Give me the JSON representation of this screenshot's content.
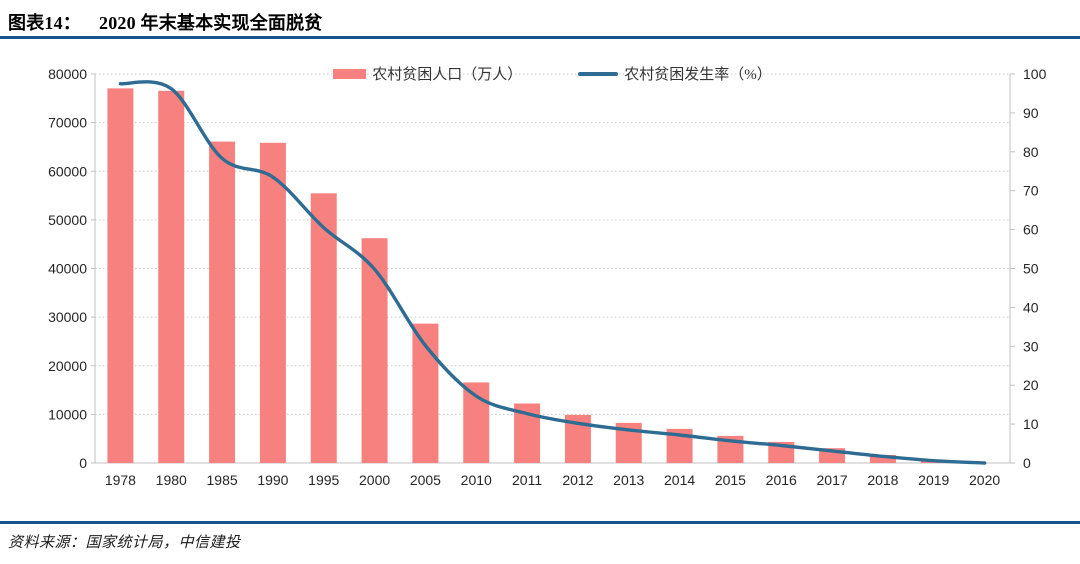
{
  "header": {
    "figure_label": "图表14：",
    "figure_title": "2020 年末基本实现全面脱贫"
  },
  "footer": {
    "source": "资料来源：国家统计局，中信建投"
  },
  "colors": {
    "bar": "#F7817E",
    "line": "#2E6C93",
    "rule": "#17558C",
    "grid": "#CBCBCB",
    "axis": "#C0C0C0",
    "tick_text": "#262626"
  },
  "chart_data": {
    "type": "bar+line",
    "title": "2020 年末基本实现全面脱贫",
    "categories": [
      "1978",
      "1980",
      "1985",
      "1990",
      "1995",
      "2000",
      "2005",
      "2010",
      "2011",
      "2012",
      "2013",
      "2014",
      "2015",
      "2016",
      "2017",
      "2018",
      "2019",
      "2020"
    ],
    "series": [
      {
        "name": "农村贫困人口（万人）",
        "type": "bar",
        "axis": "left",
        "values": [
          77039,
          76542,
          66101,
          65849,
          55463,
          46224,
          28662,
          16567,
          12238,
          9899,
          8249,
          7017,
          5575,
          4335,
          3046,
          1660,
          551,
          0
        ]
      },
      {
        "name": "农村贫困发生率（%）",
        "type": "line",
        "axis": "right",
        "values": [
          97.5,
          96.2,
          78.3,
          73.5,
          60.5,
          49.8,
          30.2,
          17.2,
          12.7,
          10.2,
          8.5,
          7.2,
          5.7,
          4.5,
          3.1,
          1.7,
          0.6,
          0
        ]
      }
    ],
    "left_axis": {
      "min": 0,
      "max": 80000,
      "step": 10000,
      "ticks": [
        0,
        10000,
        20000,
        30000,
        40000,
        50000,
        60000,
        70000,
        80000
      ]
    },
    "right_axis": {
      "min": 0,
      "max": 100,
      "step": 10,
      "ticks": [
        0,
        10,
        20,
        30,
        40,
        50,
        60,
        70,
        80,
        90,
        100
      ]
    },
    "grid": "horizontal-dotted",
    "legend_position": "top-center",
    "line_smooth": true
  }
}
